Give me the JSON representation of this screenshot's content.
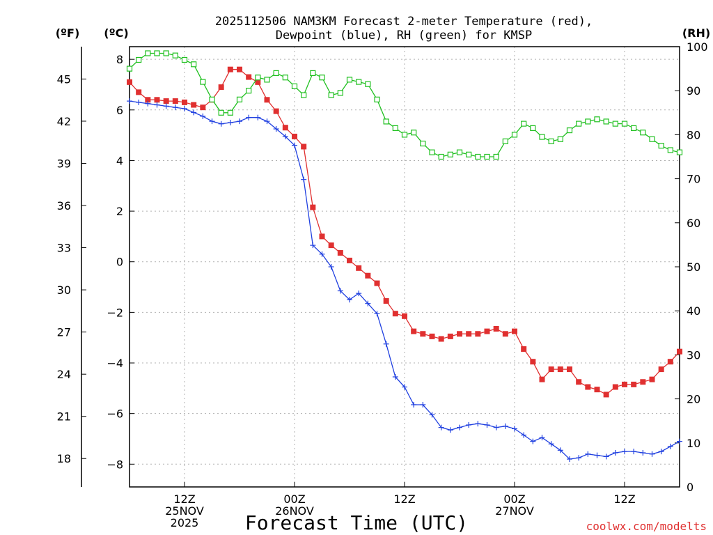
{
  "title_line1": "2025112506 NAM3KM Forecast 2-meter Temperature (red),",
  "title_line2": "Dewpoint (blue), RH (green) for KMSP",
  "unit_f": "(ºF)",
  "unit_c": "(ºC)",
  "unit_rh": "(RH)",
  "xlabel": "Forecast Time (UTC)",
  "credit": "coolwx.com/modelts",
  "colors": {
    "temperature": "#e03030",
    "dewpoint": "#2040e0",
    "rh": "#20c020",
    "axis": "#000000"
  },
  "chart_data": {
    "type": "line",
    "title": "2025112506 NAM3KM Forecast 2-meter Temperature (red), Dewpoint (blue), RH (green) for KMSP",
    "xlabel": "Forecast Time (UTC)",
    "x_units": "hours from 2025-11-25 06Z",
    "xlim": [
      0,
      60
    ],
    "x_ticks": [
      {
        "x": 6,
        "lines": [
          "12Z",
          "25NOV",
          "2025"
        ]
      },
      {
        "x": 18,
        "lines": [
          "00Z",
          "26NOV"
        ]
      },
      {
        "x": 30,
        "lines": [
          "12Z"
        ]
      },
      {
        "x": 42,
        "lines": [
          "00Z",
          "27NOV"
        ]
      },
      {
        "x": 54,
        "lines": [
          "12Z"
        ]
      }
    ],
    "y_left_celsius": {
      "label": "(ºC)",
      "lim": [
        -8.9,
        8.5
      ],
      "ticks": [
        8,
        6,
        4,
        2,
        0,
        -2,
        -4,
        -6,
        -8
      ]
    },
    "y_left_fahrenheit": {
      "label": "(ºF)",
      "ticks": [
        45,
        42,
        39,
        36,
        33,
        30,
        27,
        24,
        21,
        18
      ]
    },
    "y_right_rh": {
      "label": "(RH)",
      "lim": [
        0,
        100
      ],
      "ticks": [
        100,
        90,
        80,
        70,
        60,
        50,
        40,
        30,
        20,
        10,
        0
      ]
    },
    "grid": true,
    "series": [
      {
        "name": "Temperature",
        "units": "°C",
        "axis": "celsius",
        "marker": "filled-square",
        "color": "#e03030",
        "x": [
          0,
          1,
          2,
          3,
          4,
          5,
          6,
          7,
          8,
          9,
          10,
          11,
          12,
          13,
          14,
          15,
          16,
          17,
          18,
          19,
          20,
          21,
          22,
          23,
          24,
          25,
          26,
          27,
          28,
          29,
          30,
          31,
          32,
          33,
          34,
          35,
          36,
          37,
          38,
          39,
          40,
          41,
          42,
          43,
          44,
          45,
          46,
          47,
          48,
          49,
          50,
          51,
          52,
          53,
          54,
          55,
          56,
          57,
          58,
          59,
          60
        ],
        "values": [
          7.1,
          6.7,
          6.4,
          6.4,
          6.35,
          6.35,
          6.3,
          6.2,
          6.1,
          6.4,
          6.9,
          7.6,
          7.6,
          7.3,
          7.1,
          6.4,
          5.95,
          5.3,
          4.95,
          4.55,
          2.15,
          1.0,
          0.65,
          0.35,
          0.05,
          -0.25,
          -0.55,
          -0.85,
          -1.55,
          -2.05,
          -2.15,
          -2.75,
          -2.85,
          -2.95,
          -3.05,
          -2.95,
          -2.85,
          -2.85,
          -2.85,
          -2.75,
          -2.65,
          -2.85,
          -2.75,
          -3.45,
          -3.95,
          -4.65,
          -4.25,
          -4.25,
          -4.25,
          -4.75,
          -4.95,
          -5.05,
          -5.25,
          -4.95,
          -4.85,
          -4.85,
          -4.75,
          -4.65,
          -4.25,
          -3.95,
          -3.55
        ]
      },
      {
        "name": "Dewpoint",
        "units": "°C",
        "axis": "celsius",
        "marker": "plus",
        "color": "#2040e0",
        "x": [
          0,
          1,
          2,
          3,
          4,
          5,
          6,
          7,
          8,
          9,
          10,
          11,
          12,
          13,
          14,
          15,
          16,
          17,
          18,
          19,
          20,
          21,
          22,
          23,
          24,
          25,
          26,
          27,
          28,
          29,
          30,
          31,
          32,
          33,
          34,
          35,
          36,
          37,
          38,
          39,
          40,
          41,
          42,
          43,
          44,
          45,
          46,
          47,
          48,
          49,
          50,
          51,
          52,
          53,
          54,
          55,
          56,
          57,
          58,
          59,
          60
        ],
        "values": [
          6.35,
          6.3,
          6.25,
          6.2,
          6.15,
          6.1,
          6.05,
          5.9,
          5.75,
          5.55,
          5.45,
          5.5,
          5.55,
          5.7,
          5.7,
          5.55,
          5.25,
          4.95,
          4.6,
          3.25,
          0.65,
          0.3,
          -0.2,
          -1.15,
          -1.5,
          -1.25,
          -1.65,
          -2.05,
          -3.25,
          -4.55,
          -4.95,
          -5.65,
          -5.65,
          -6.05,
          -6.55,
          -6.65,
          -6.55,
          -6.45,
          -6.4,
          -6.45,
          -6.55,
          -6.5,
          -6.6,
          -6.85,
          -7.1,
          -6.95,
          -7.2,
          -7.45,
          -7.8,
          -7.75,
          -7.6,
          -7.65,
          -7.7,
          -7.55,
          -7.5,
          -7.5,
          -7.55,
          -7.6,
          -7.5,
          -7.3,
          -7.1
        ]
      },
      {
        "name": "RH",
        "units": "%",
        "axis": "rh",
        "marker": "open-square",
        "color": "#20c020",
        "x": [
          0,
          1,
          2,
          3,
          4,
          5,
          6,
          7,
          8,
          9,
          10,
          11,
          12,
          13,
          14,
          15,
          16,
          17,
          18,
          19,
          20,
          21,
          22,
          23,
          24,
          25,
          26,
          27,
          28,
          29,
          30,
          31,
          32,
          33,
          34,
          35,
          36,
          37,
          38,
          39,
          40,
          41,
          42,
          43,
          44,
          45,
          46,
          47,
          48,
          49,
          50,
          51,
          52,
          53,
          54,
          55,
          56,
          57,
          58,
          59,
          60
        ],
        "values": [
          95,
          97,
          98.5,
          98.5,
          98.5,
          98,
          97,
          96,
          92,
          88,
          85,
          85,
          88,
          90,
          93,
          92.5,
          94,
          93,
          91,
          89,
          94,
          93,
          89,
          89.5,
          92.5,
          92,
          91.5,
          88,
          83,
          81.5,
          80,
          80.5,
          78,
          76,
          75,
          75.5,
          76,
          75.5,
          75,
          75,
          75,
          78.5,
          80,
          82.5,
          81.5,
          79.5,
          78.5,
          79,
          81,
          82.5,
          83,
          83.5,
          83,
          82.5,
          82.5,
          81.5,
          80.5,
          79,
          77.5,
          76.5,
          76
        ]
      }
    ]
  }
}
